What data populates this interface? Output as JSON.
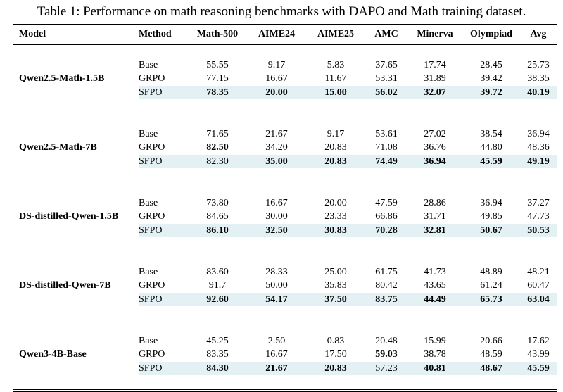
{
  "caption": "Table 1: Performance on math reasoning benchmarks with DAPO and Math training dataset.",
  "columns": [
    "Model",
    "Method",
    "Math-500",
    "AIME24",
    "AIME25",
    "AMC",
    "Minerva",
    "Olympiad",
    "Avg"
  ],
  "groups": [
    {
      "model": "Qwen2.5-Math-1.5B",
      "rows": [
        {
          "method": "Base",
          "values": [
            "55.55",
            "9.17",
            "5.83",
            "37.65",
            "17.74",
            "28.45",
            "25.73"
          ],
          "bold": [
            false,
            false,
            false,
            false,
            false,
            false,
            false
          ]
        },
        {
          "method": "GRPO",
          "values": [
            "77.15",
            "16.67",
            "11.67",
            "53.31",
            "31.89",
            "39.42",
            "38.35"
          ],
          "bold": [
            false,
            false,
            false,
            false,
            false,
            false,
            false
          ]
        },
        {
          "method": "SFPO",
          "values": [
            "78.35",
            "20.00",
            "15.00",
            "56.02",
            "32.07",
            "39.72",
            "40.19"
          ],
          "bold": [
            true,
            true,
            true,
            true,
            true,
            true,
            true
          ]
        }
      ]
    },
    {
      "model": "Qwen2.5-Math-7B",
      "rows": [
        {
          "method": "Base",
          "values": [
            "71.65",
            "21.67",
            "9.17",
            "53.61",
            "27.02",
            "38.54",
            "36.94"
          ],
          "bold": [
            false,
            false,
            false,
            false,
            false,
            false,
            false
          ]
        },
        {
          "method": "GRPO",
          "values": [
            "82.50",
            "34.20",
            "20.83",
            "71.08",
            "36.76",
            "44.80",
            "48.36"
          ],
          "bold": [
            true,
            false,
            false,
            false,
            false,
            false,
            false
          ]
        },
        {
          "method": "SFPO",
          "values": [
            "82.30",
            "35.00",
            "20.83",
            "74.49",
            "36.94",
            "45.59",
            "49.19"
          ],
          "bold": [
            false,
            true,
            true,
            true,
            true,
            true,
            true
          ]
        }
      ]
    },
    {
      "model": "DS-distilled-Qwen-1.5B",
      "rows": [
        {
          "method": "Base",
          "values": [
            "73.80",
            "16.67",
            "20.00",
            "47.59",
            "28.86",
            "36.94",
            "37.27"
          ],
          "bold": [
            false,
            false,
            false,
            false,
            false,
            false,
            false
          ]
        },
        {
          "method": "GRPO",
          "values": [
            "84.65",
            "30.00",
            "23.33",
            "66.86",
            "31.71",
            "49.85",
            "47.73"
          ],
          "bold": [
            false,
            false,
            false,
            false,
            false,
            false,
            false
          ]
        },
        {
          "method": "SFPO",
          "values": [
            "86.10",
            "32.50",
            "30.83",
            "70.28",
            "32.81",
            "50.67",
            "50.53"
          ],
          "bold": [
            true,
            true,
            true,
            true,
            true,
            true,
            true
          ]
        }
      ]
    },
    {
      "model": "DS-distilled-Qwen-7B",
      "rows": [
        {
          "method": "Base",
          "values": [
            "83.60",
            "28.33",
            "25.00",
            "61.75",
            "41.73",
            "48.89",
            "48.21"
          ],
          "bold": [
            false,
            false,
            false,
            false,
            false,
            false,
            false
          ]
        },
        {
          "method": "GRPO",
          "values": [
            "91.7",
            "50.00",
            "35.83",
            "80.42",
            "43.65",
            "61.24",
            "60.47"
          ],
          "bold": [
            false,
            false,
            false,
            false,
            false,
            false,
            false
          ]
        },
        {
          "method": "SFPO",
          "values": [
            "92.60",
            "54.17",
            "37.50",
            "83.75",
            "44.49",
            "65.73",
            "63.04"
          ],
          "bold": [
            true,
            true,
            true,
            true,
            true,
            true,
            true
          ]
        }
      ]
    },
    {
      "model": "Qwen3-4B-Base",
      "rows": [
        {
          "method": "Base",
          "values": [
            "45.25",
            "2.50",
            "0.83",
            "20.48",
            "15.99",
            "20.66",
            "17.62"
          ],
          "bold": [
            false,
            false,
            false,
            false,
            false,
            false,
            false
          ]
        },
        {
          "method": "GRPO",
          "values": [
            "83.35",
            "16.67",
            "17.50",
            "59.03",
            "38.78",
            "48.59",
            "43.99"
          ],
          "bold": [
            false,
            false,
            false,
            true,
            false,
            false,
            false
          ]
        },
        {
          "method": "SFPO",
          "values": [
            "84.30",
            "21.67",
            "20.83",
            "57.23",
            "40.81",
            "48.67",
            "45.59"
          ],
          "bold": [
            true,
            true,
            true,
            false,
            true,
            true,
            true
          ]
        }
      ]
    }
  ],
  "colors": {
    "highlight": "#e3f1f4",
    "rule": "#000000"
  }
}
